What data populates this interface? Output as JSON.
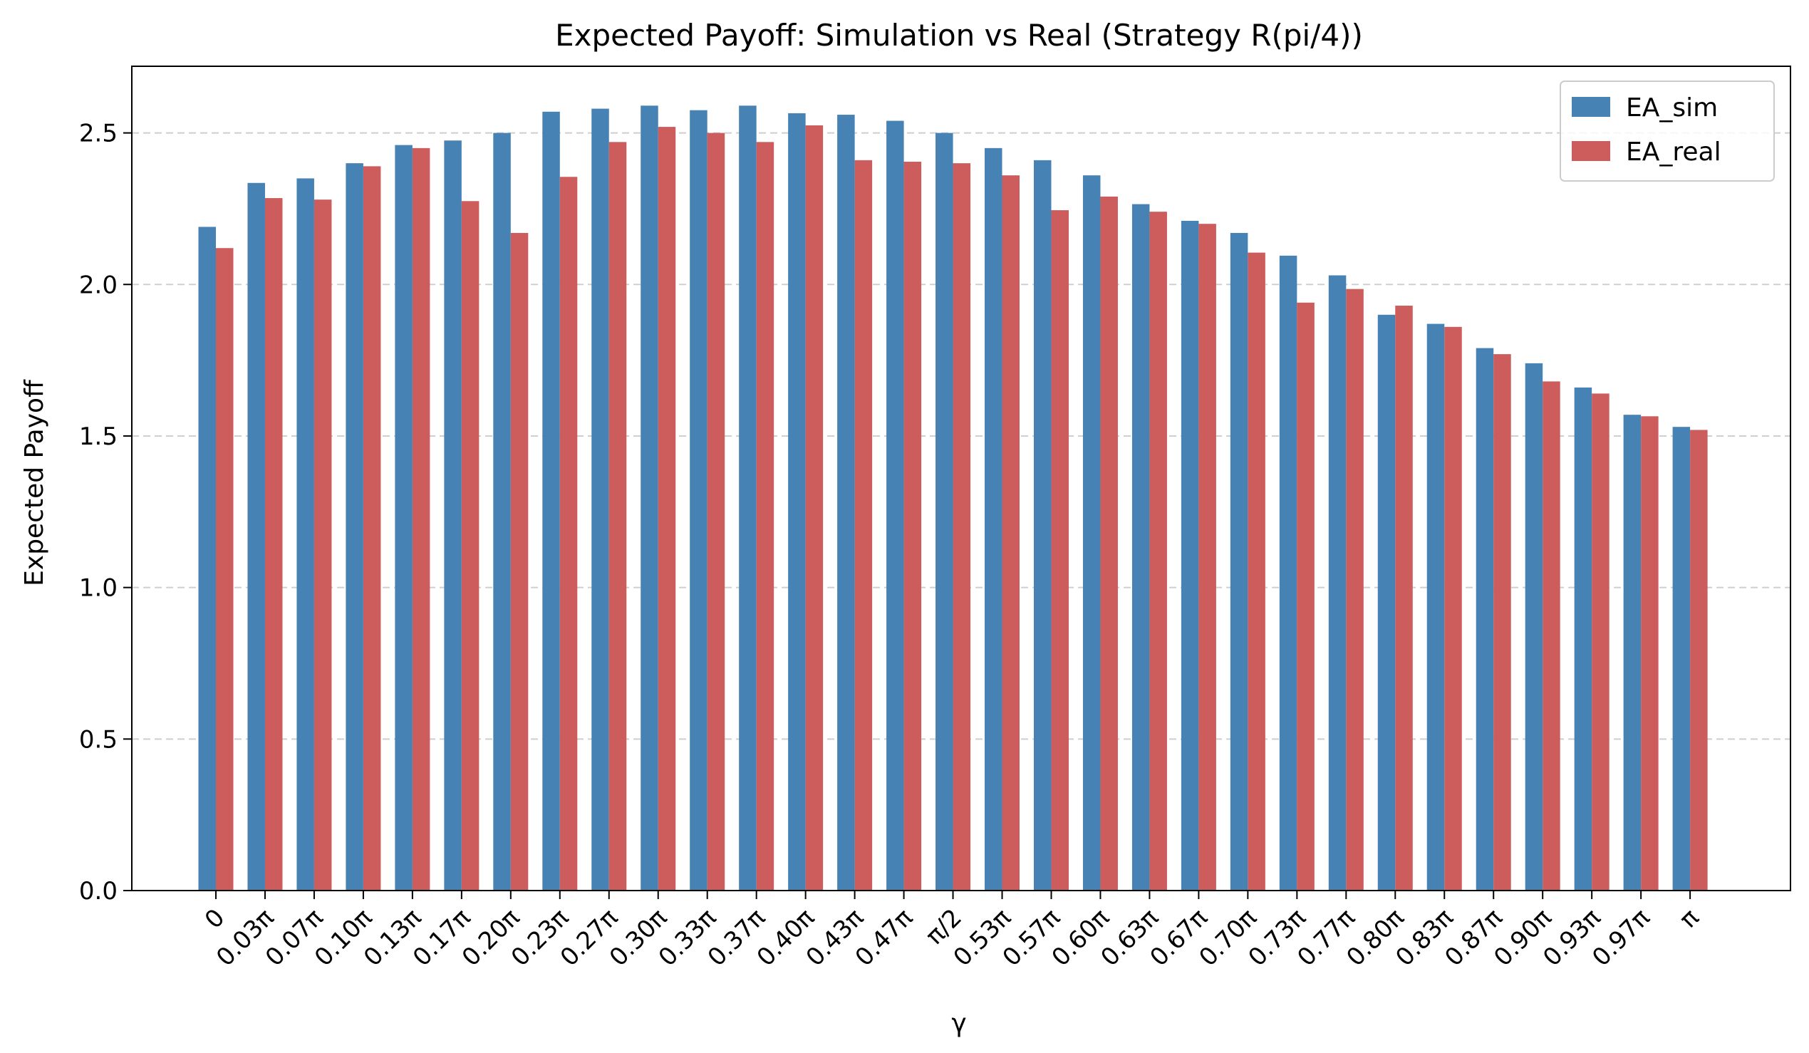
{
  "chart_data": {
    "type": "bar",
    "title": "Expected Payoff: Simulation vs Real (Strategy R(pi/4))",
    "xlabel": "γ",
    "ylabel": "Expected Payoff",
    "ylim": [
      0,
      2.72
    ],
    "yticks": [
      "0.0",
      "0.5",
      "1.0",
      "1.5",
      "2.0",
      "2.5"
    ],
    "grid": "horizontal dashed",
    "legend_position": "top-right",
    "categories": [
      "0",
      "0.03π",
      "0.07π",
      "0.10π",
      "0.13π",
      "0.17π",
      "0.20π",
      "0.23π",
      "0.27π",
      "0.30π",
      "0.33π",
      "0.37π",
      "0.40π",
      "0.43π",
      "0.47π",
      "π/2",
      "0.53π",
      "0.57π",
      "0.60π",
      "0.63π",
      "0.67π",
      "0.70π",
      "0.73π",
      "0.77π",
      "0.80π",
      "0.83π",
      "0.87π",
      "0.90π",
      "0.93π",
      "0.97π",
      "π"
    ],
    "series": [
      {
        "name": "EA_sim",
        "color": "#4682b4",
        "values": [
          2.19,
          2.335,
          2.35,
          2.4,
          2.46,
          2.475,
          2.5,
          2.57,
          2.58,
          2.59,
          2.575,
          2.59,
          2.565,
          2.56,
          2.54,
          2.5,
          2.45,
          2.41,
          2.36,
          2.265,
          2.21,
          2.17,
          2.095,
          2.03,
          1.9,
          1.87,
          1.79,
          1.74,
          1.66,
          1.57,
          1.53
        ]
      },
      {
        "name": "EA_real",
        "color": "#cd5c5c",
        "values": [
          2.12,
          2.285,
          2.28,
          2.39,
          2.45,
          2.275,
          2.17,
          2.355,
          2.47,
          2.52,
          2.5,
          2.47,
          2.525,
          2.41,
          2.405,
          2.4,
          2.36,
          2.245,
          2.29,
          2.24,
          2.2,
          2.105,
          1.94,
          1.985,
          1.93,
          1.86,
          1.77,
          1.68,
          1.64,
          1.565,
          1.52
        ]
      }
    ]
  }
}
